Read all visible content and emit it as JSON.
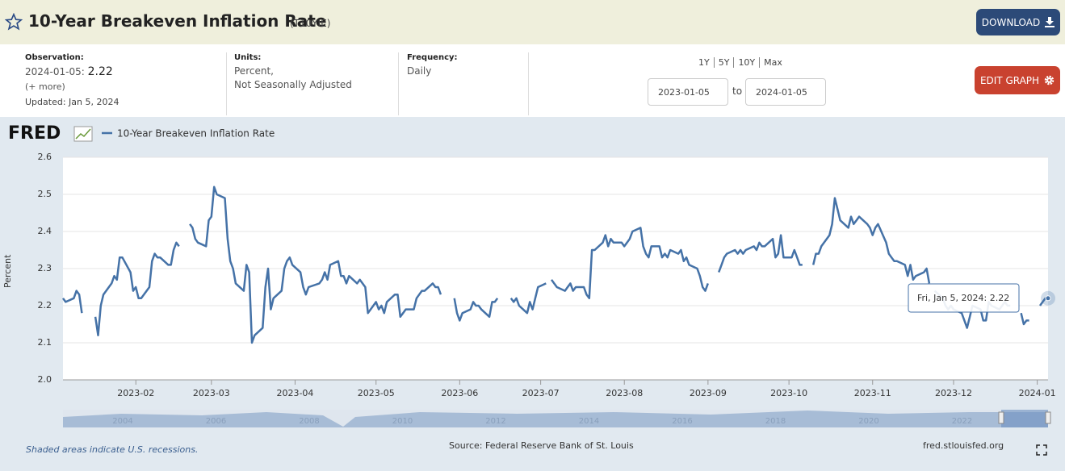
{
  "header": {
    "title": "10-Year Breakeven Inflation Rate",
    "series_id": "(T10YIE)",
    "download": "DOWNLOAD"
  },
  "info": {
    "observation_label": "Observation:",
    "observation_date": "2024-01-05:",
    "observation_value": 2.22,
    "more": "(+ more)",
    "updated": "Updated: Jan 5, 2024",
    "units_label": "Units:",
    "units_line1": "Percent,",
    "units_line2": "Not Seasonally Adjusted",
    "frequency_label": "Frequency:",
    "frequency": "Daily",
    "range_links": [
      "1Y",
      "5Y",
      "10Y",
      "Max"
    ],
    "start_date": "2023-01-05",
    "to": "to",
    "end_date": "2024-01-05",
    "edit_graph": "EDIT GRAPH"
  },
  "chart_data": {
    "type": "line",
    "logo": "FRED",
    "ylabel": "Percent",
    "x": [
      "2023-01-05",
      "2023-01-06",
      "2023-01-09",
      "2023-01-10",
      "2023-01-11",
      "2023-01-12",
      "2023-01-13",
      "2023-01-17",
      "2023-01-18",
      "2023-01-19",
      "2023-01-20",
      "2023-01-23",
      "2023-01-24",
      "2023-01-25",
      "2023-01-26",
      "2023-01-27",
      "2023-01-30",
      "2023-01-31",
      "2023-02-01",
      "2023-02-02",
      "2023-02-03",
      "2023-02-06",
      "2023-02-07",
      "2023-02-08",
      "2023-02-09",
      "2023-02-10",
      "2023-02-13",
      "2023-02-14",
      "2023-02-15",
      "2023-02-16",
      "2023-02-17",
      "2023-02-20",
      "2023-02-21",
      "2023-02-22",
      "2023-02-23",
      "2023-02-24",
      "2023-02-27",
      "2023-02-28",
      "2023-03-01",
      "2023-03-02",
      "2023-03-03",
      "2023-03-06",
      "2023-03-07",
      "2023-03-08",
      "2023-03-09",
      "2023-03-10",
      "2023-03-13",
      "2023-03-14",
      "2023-03-15",
      "2023-03-16",
      "2023-03-17",
      "2023-03-20",
      "2023-03-21",
      "2023-03-22",
      "2023-03-23",
      "2023-03-24",
      "2023-03-27",
      "2023-03-28",
      "2023-03-29",
      "2023-03-30",
      "2023-03-31",
      "2023-04-03",
      "2023-04-04",
      "2023-04-05",
      "2023-04-06",
      "2023-04-10",
      "2023-04-11",
      "2023-04-12",
      "2023-04-13",
      "2023-04-14",
      "2023-04-17",
      "2023-04-18",
      "2023-04-19",
      "2023-04-20",
      "2023-04-21",
      "2023-04-24",
      "2023-04-25",
      "2023-04-26",
      "2023-04-27",
      "2023-04-28",
      "2023-05-01",
      "2023-05-02",
      "2023-05-03",
      "2023-05-04",
      "2023-05-05",
      "2023-05-08",
      "2023-05-09",
      "2023-05-10",
      "2023-05-11",
      "2023-05-12",
      "2023-05-15",
      "2023-05-16",
      "2023-05-17",
      "2023-05-18",
      "2023-05-19",
      "2023-05-22",
      "2023-05-23",
      "2023-05-24",
      "2023-05-25",
      "2023-05-29",
      "2023-05-30",
      "2023-05-31",
      "2023-06-01",
      "2023-06-02",
      "2023-06-05",
      "2023-06-06",
      "2023-06-07",
      "2023-06-08",
      "2023-06-09",
      "2023-06-12",
      "2023-06-13",
      "2023-06-14",
      "2023-06-15",
      "2023-06-19",
      "2023-06-20",
      "2023-06-21",
      "2023-06-22",
      "2023-06-23",
      "2023-06-26",
      "2023-06-27",
      "2023-06-28",
      "2023-06-29",
      "2023-06-30",
      "2023-07-03",
      "2023-07-04",
      "2023-07-05",
      "2023-07-06",
      "2023-07-07",
      "2023-07-10",
      "2023-07-11",
      "2023-07-12",
      "2023-07-13",
      "2023-07-14",
      "2023-07-17",
      "2023-07-18",
      "2023-07-19",
      "2023-07-20",
      "2023-07-21",
      "2023-07-24",
      "2023-07-25",
      "2023-07-26",
      "2023-07-27",
      "2023-07-28",
      "2023-07-31",
      "2023-08-01",
      "2023-08-02",
      "2023-08-03",
      "2023-08-04",
      "2023-08-07",
      "2023-08-08",
      "2023-08-09",
      "2023-08-10",
      "2023-08-11",
      "2023-08-14",
      "2023-08-15",
      "2023-08-16",
      "2023-08-17",
      "2023-08-18",
      "2023-08-21",
      "2023-08-22",
      "2023-08-23",
      "2023-08-24",
      "2023-08-25",
      "2023-08-28",
      "2023-08-29",
      "2023-08-30",
      "2023-08-31",
      "2023-09-01",
      "2023-09-04",
      "2023-09-05",
      "2023-09-06",
      "2023-09-07",
      "2023-09-08",
      "2023-09-11",
      "2023-09-12",
      "2023-09-13",
      "2023-09-14",
      "2023-09-15",
      "2023-09-18",
      "2023-09-19",
      "2023-09-20",
      "2023-09-21",
      "2023-09-22",
      "2023-09-25",
      "2023-09-26",
      "2023-09-27",
      "2023-09-28",
      "2023-09-29",
      "2023-10-02",
      "2023-10-03",
      "2023-10-04",
      "2023-10-05",
      "2023-10-06",
      "2023-10-09",
      "2023-10-10",
      "2023-10-11",
      "2023-10-12",
      "2023-10-13",
      "2023-10-16",
      "2023-10-17",
      "2023-10-18",
      "2023-10-19",
      "2023-10-20",
      "2023-10-23",
      "2023-10-24",
      "2023-10-25",
      "2023-10-26",
      "2023-10-27",
      "2023-10-30",
      "2023-10-31",
      "2023-11-01",
      "2023-11-02",
      "2023-11-03",
      "2023-11-06",
      "2023-11-07",
      "2023-11-08",
      "2023-11-09",
      "2023-11-10",
      "2023-11-13",
      "2023-11-14",
      "2023-11-15",
      "2023-11-16",
      "2023-11-17",
      "2023-11-20",
      "2023-11-21",
      "2023-11-22",
      "2023-11-23",
      "2023-11-24",
      "2023-11-27",
      "2023-11-28",
      "2023-11-29",
      "2023-11-30",
      "2023-12-01",
      "2023-12-04",
      "2023-12-05",
      "2023-12-06",
      "2023-12-07",
      "2023-12-08",
      "2023-12-11",
      "2023-12-12",
      "2023-12-13",
      "2023-12-14",
      "2023-12-15",
      "2023-12-18",
      "2023-12-19",
      "2023-12-20",
      "2023-12-21",
      "2023-12-22",
      "2023-12-25",
      "2023-12-26",
      "2023-12-27",
      "2023-12-28",
      "2023-12-29",
      "2024-01-01",
      "2024-01-02",
      "2024-01-03",
      "2024-01-04",
      "2024-01-05"
    ],
    "series": [
      {
        "name": "10-Year Breakeven Inflation Rate",
        "color": "#4572a7",
        "values": [
          2.22,
          2.21,
          2.22,
          2.24,
          2.23,
          2.18,
          null,
          2.17,
          2.12,
          2.2,
          2.23,
          2.26,
          2.28,
          2.27,
          2.33,
          2.33,
          2.29,
          2.24,
          2.25,
          2.22,
          2.22,
          2.25,
          2.32,
          2.34,
          2.33,
          2.33,
          2.31,
          2.31,
          2.35,
          2.37,
          2.36,
          null,
          2.42,
          2.41,
          2.38,
          2.37,
          2.36,
          2.43,
          2.44,
          2.52,
          2.5,
          2.49,
          2.38,
          2.32,
          2.3,
          2.26,
          2.24,
          2.31,
          2.29,
          2.1,
          2.12,
          2.14,
          2.25,
          2.3,
          2.19,
          2.22,
          2.24,
          2.3,
          2.32,
          2.33,
          2.31,
          2.29,
          2.25,
          2.23,
          2.25,
          2.26,
          2.27,
          2.29,
          2.27,
          2.31,
          2.32,
          2.28,
          2.28,
          2.26,
          2.28,
          2.26,
          2.27,
          2.26,
          2.25,
          2.18,
          2.21,
          2.19,
          2.2,
          2.18,
          2.21,
          2.23,
          2.23,
          2.17,
          2.18,
          2.19,
          2.19,
          2.22,
          2.23,
          2.24,
          2.24,
          2.26,
          2.25,
          2.25,
          2.23,
          null,
          2.22,
          2.18,
          2.16,
          2.18,
          2.19,
          2.21,
          2.2,
          2.2,
          2.19,
          2.17,
          2.21,
          2.21,
          2.22,
          null,
          2.22,
          2.21,
          2.22,
          2.2,
          2.18,
          2.21,
          2.19,
          2.22,
          2.25,
          2.26,
          null,
          2.27,
          2.26,
          2.25,
          2.24,
          2.25,
          2.26,
          2.24,
          2.25,
          2.25,
          2.23,
          2.22,
          2.35,
          2.35,
          2.37,
          2.39,
          2.36,
          2.38,
          2.37,
          2.37,
          2.36,
          2.37,
          2.38,
          2.4,
          2.41,
          2.36,
          2.34,
          2.33,
          2.36,
          2.36,
          2.33,
          2.34,
          2.33,
          2.35,
          2.34,
          2.35,
          2.32,
          2.33,
          2.31,
          2.3,
          2.28,
          2.25,
          2.24,
          2.26,
          null,
          2.29,
          2.31,
          2.33,
          2.34,
          2.35,
          2.34,
          2.35,
          2.34,
          2.35,
          2.36,
          2.35,
          2.37,
          2.36,
          2.36,
          2.38,
          2.33,
          2.34,
          2.39,
          2.33,
          2.33,
          2.35,
          2.33,
          2.31,
          2.31,
          null,
          2.31,
          2.34,
          2.34,
          2.36,
          2.39,
          2.42,
          2.49,
          2.46,
          2.43,
          2.41,
          2.44,
          2.42,
          2.43,
          2.44,
          2.42,
          2.41,
          2.39,
          2.41,
          2.42,
          2.37,
          2.34,
          2.33,
          2.32,
          2.32,
          2.31,
          2.28,
          2.31,
          2.27,
          2.28,
          2.29,
          2.3,
          2.26,
          null,
          2.24,
          2.22,
          2.2,
          2.19,
          2.2,
          2.19,
          2.18,
          2.16,
          2.14,
          2.17,
          2.2,
          2.19,
          2.16,
          2.16,
          2.21,
          2.2,
          2.19,
          2.2,
          2.21,
          2.2,
          2.2,
          null,
          2.18,
          2.15,
          2.16,
          2.16,
          null,
          2.2,
          2.21,
          2.22,
          2.22
        ]
      }
    ],
    "xlim": [
      "2023-01-05",
      "2024-01-05"
    ],
    "xticks": [
      "2023-02",
      "2023-03",
      "2023-04",
      "2023-05",
      "2023-06",
      "2023-07",
      "2023-08",
      "2023-09",
      "2023-10",
      "2023-11",
      "2023-12",
      "2024-01"
    ],
    "ylim": [
      2.0,
      2.6
    ],
    "yticks": [
      {
        "value": 2,
        "label": "2.0"
      },
      2.1,
      2.2,
      2.3,
      2.4,
      2.5,
      2.6
    ],
    "grid": true,
    "tooltip": {
      "label": "Fri, Jan 5, 2024:",
      "value": 2.22
    },
    "navigator_labels": [
      "2004",
      "2006",
      "2008",
      "2010",
      "2012",
      "2014",
      "2016",
      "2018",
      "2020",
      "2022"
    ]
  },
  "footer": {
    "recessions": "Shaded areas indicate U.S. recessions.",
    "source": "Source: Federal Reserve Bank of St. Louis",
    "site": "fred.stlouisfed.org"
  }
}
